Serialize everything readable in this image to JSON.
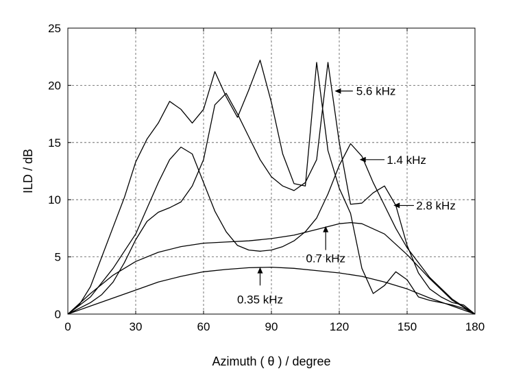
{
  "chart_data": {
    "type": "line",
    "title": "",
    "xlabel": "Azimuth ( θ ) / degree",
    "ylabel": "ILD / dB",
    "xlim": [
      0,
      180
    ],
    "ylim": [
      0,
      25
    ],
    "xticks": [
      0,
      30,
      60,
      90,
      120,
      150,
      180
    ],
    "yticks": [
      0,
      5,
      10,
      15,
      20,
      25
    ],
    "grid": true,
    "line_color": "#000000",
    "series": [
      {
        "name": "0.35 kHz",
        "x": [
          0,
          10,
          20,
          30,
          40,
          50,
          60,
          70,
          80,
          90,
          100,
          110,
          120,
          130,
          140,
          150,
          160,
          170,
          180
        ],
        "y": [
          0,
          0.7,
          1.4,
          2.1,
          2.8,
          3.3,
          3.7,
          3.9,
          4.05,
          4.1,
          4.0,
          3.8,
          3.6,
          3.3,
          2.8,
          2.2,
          1.4,
          0.7,
          0
        ]
      },
      {
        "name": "0.7 kHz",
        "x": [
          0,
          10,
          20,
          30,
          40,
          50,
          60,
          70,
          80,
          90,
          100,
          110,
          120,
          125,
          130,
          140,
          150,
          160,
          170,
          180
        ],
        "y": [
          0,
          1.8,
          3.4,
          4.6,
          5.4,
          5.9,
          6.2,
          6.3,
          6.4,
          6.6,
          6.9,
          7.4,
          7.9,
          8.0,
          7.9,
          7.0,
          5.2,
          3.1,
          1.2,
          0
        ]
      },
      {
        "name": "1.4 kHz",
        "x": [
          0,
          10,
          20,
          30,
          40,
          45,
          50,
          55,
          60,
          65,
          70,
          75,
          80,
          85,
          90,
          95,
          100,
          105,
          110,
          115,
          120,
          125,
          130,
          135,
          140,
          145,
          150,
          160,
          170,
          180
        ],
        "y": [
          0,
          1.5,
          4.0,
          7.0,
          11.5,
          13.5,
          14.6,
          14.0,
          11.5,
          9.0,
          7.2,
          6.0,
          5.6,
          5.5,
          5.6,
          5.9,
          6.4,
          7.2,
          8.4,
          10.5,
          13.0,
          14.9,
          13.8,
          11.5,
          9.5,
          7.5,
          5.8,
          3.2,
          1.3,
          0
        ]
      },
      {
        "name": "2.8 kHz",
        "x": [
          0,
          5,
          10,
          15,
          20,
          25,
          30,
          35,
          40,
          45,
          50,
          55,
          60,
          65,
          70,
          75,
          80,
          85,
          90,
          95,
          100,
          105,
          110,
          115,
          120,
          125,
          130,
          135,
          140,
          145,
          150,
          155,
          160,
          165,
          170,
          175,
          180
        ],
        "y": [
          0,
          0.5,
          1.0,
          1.7,
          2.8,
          4.5,
          6.5,
          8.1,
          8.9,
          9.3,
          9.8,
          11.2,
          13.5,
          18.3,
          19.3,
          17.5,
          15.5,
          13.5,
          12.0,
          11.2,
          10.8,
          11.5,
          13.5,
          22.0,
          15.0,
          9.6,
          9.7,
          10.6,
          11.2,
          9.5,
          6.0,
          3.6,
          2.2,
          1.5,
          1.0,
          0.8,
          0
        ]
      },
      {
        "name": "5.6 kHz",
        "x": [
          0,
          5,
          10,
          15,
          20,
          25,
          30,
          35,
          40,
          45,
          50,
          55,
          60,
          65,
          70,
          75,
          80,
          85,
          90,
          95,
          100,
          105,
          110,
          115,
          120,
          125,
          130,
          135,
          140,
          145,
          150,
          155,
          160,
          165,
          170,
          175,
          180
        ],
        "y": [
          0,
          0.8,
          2.4,
          5.0,
          7.6,
          10.2,
          13.3,
          15.3,
          16.7,
          18.6,
          17.9,
          16.7,
          17.9,
          21.2,
          19.0,
          17.2,
          19.6,
          22.2,
          18.5,
          14.0,
          11.4,
          11.2,
          22.0,
          14.3,
          11.0,
          8.8,
          4.0,
          1.8,
          2.5,
          3.7,
          3.0,
          1.5,
          1.2,
          1.0,
          0.8,
          0.5,
          0
        ]
      }
    ],
    "annotations": [
      {
        "text": "5.6 kHz",
        "tip": [
          118,
          19.5
        ],
        "tail": [
          126,
          19.5
        ],
        "label": [
          127.5,
          19.5
        ],
        "anchor": "start"
      },
      {
        "text": "1.4 kHz",
        "tip": [
          129,
          13.5
        ],
        "tail": [
          140,
          13.5
        ],
        "label": [
          141,
          13.5
        ],
        "anchor": "start"
      },
      {
        "text": "2.8 kHz",
        "tip": [
          144,
          9.5
        ],
        "tail": [
          153,
          9.5
        ],
        "label": [
          154,
          9.5
        ],
        "anchor": "start"
      },
      {
        "text": "0.7 kHz",
        "tip": [
          114,
          7.7
        ],
        "tail": [
          114,
          5.6
        ],
        "label": [
          114,
          4.9
        ],
        "anchor": "middle"
      },
      {
        "text": "0.35 kHz",
        "tip": [
          85,
          4.1
        ],
        "tail": [
          85,
          2.5
        ],
        "label": [
          85,
          1.3
        ],
        "anchor": "middle"
      }
    ]
  }
}
